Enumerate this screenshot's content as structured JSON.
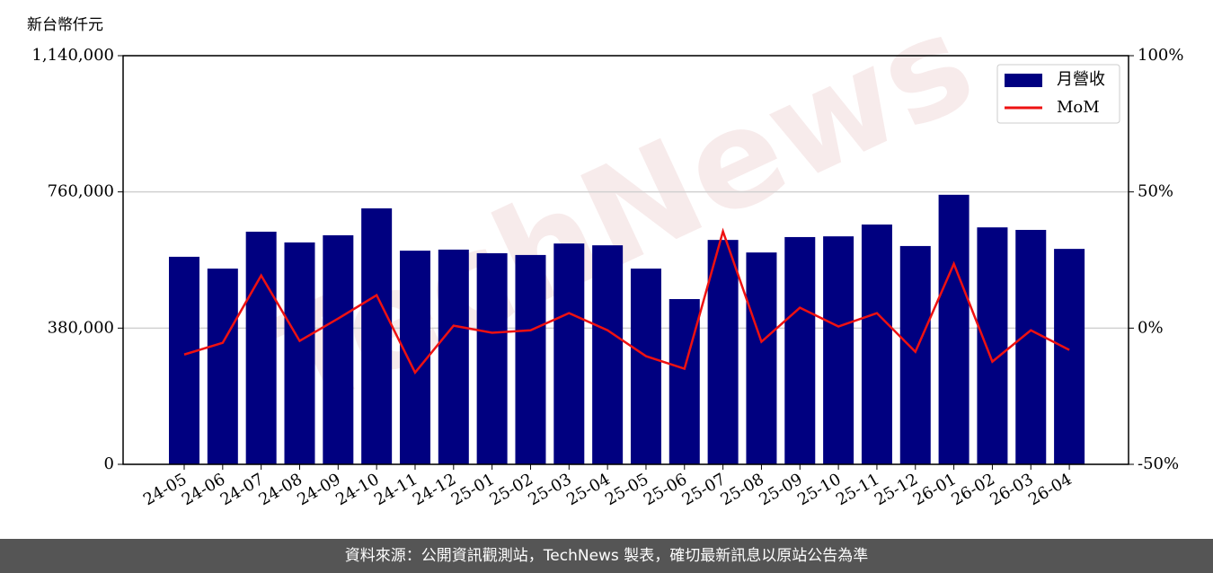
{
  "chart_data": {
    "type": "bar",
    "y_label": "新台幣仟元",
    "watermark": "TechNews",
    "categories": [
      "24-05",
      "24-06",
      "24-07",
      "24-08",
      "24-09",
      "24-10",
      "24-11",
      "24-12",
      "25-01",
      "25-02",
      "25-03",
      "25-04",
      "25-05",
      "25-06",
      "25-07",
      "25-08",
      "25-09",
      "25-10",
      "25-11",
      "25-12",
      "26-01",
      "26-02",
      "26-03",
      "26-04"
    ],
    "series": [
      {
        "name": "月營收",
        "type": "bar",
        "color": "#000080",
        "values": [
          579000,
          546000,
          649000,
          619000,
          639000,
          714000,
          596000,
          599000,
          589000,
          584000,
          616000,
          611000,
          546000,
          461000,
          626000,
          591000,
          634000,
          636000,
          669000,
          609000,
          752000,
          661000,
          654000,
          601000
        ]
      },
      {
        "name": "MoM",
        "type": "line",
        "axis": "y2",
        "color": "#ee1111",
        "values": [
          -9.7,
          -5.4,
          19.3,
          -4.7,
          3.5,
          12.1,
          -16.3,
          0.9,
          -1.7,
          -0.8,
          5.5,
          -0.8,
          -10.3,
          -14.9,
          35.5,
          -5.0,
          7.5,
          0.6,
          5.5,
          -8.7,
          23.6,
          -12.3,
          -0.8,
          -8.0
        ]
      }
    ],
    "ylim": [
      0,
      1140000
    ],
    "yticks": [
      0,
      {
        "value": 380000,
        "label": "380,000"
      },
      {
        "value": 760000,
        "label": "760,000"
      },
      {
        "value": 1140000,
        "label": "1,140,000"
      }
    ],
    "y2lim": [
      -50,
      100
    ],
    "y2ticks": [
      {
        "value": -50,
        "label": "-50%"
      },
      {
        "value": 0,
        "label": "0%"
      },
      {
        "value": 50,
        "label": "50%"
      },
      {
        "value": 100,
        "label": "100%"
      }
    ],
    "grid": true,
    "legend": "upper right"
  },
  "footer": "資料來源：公開資訊觀測站，TechNews 製表，確切最新訊息以原站公告為準"
}
